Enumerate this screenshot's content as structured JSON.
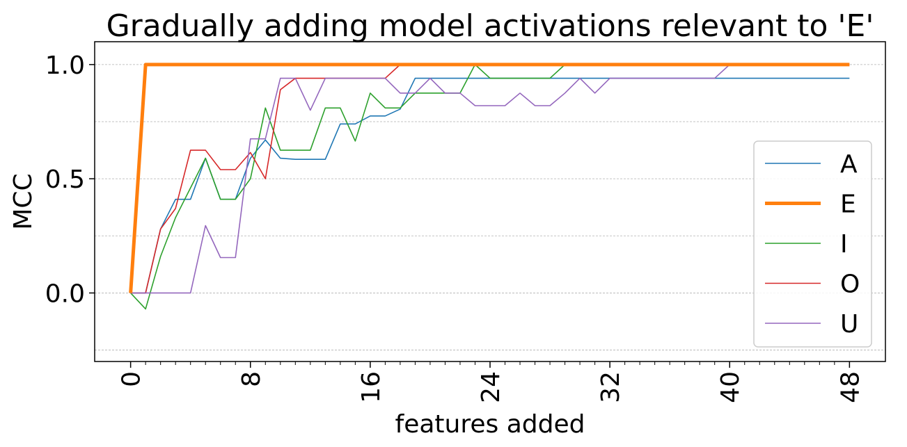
{
  "chart_data": {
    "type": "line",
    "title": "Gradually adding model activations relevant to 'E'",
    "xlabel": "features added",
    "ylabel": "MCC",
    "xlim": [
      -2.4,
      50.4
    ],
    "ylim": [
      -0.3,
      1.1
    ],
    "x_ticks": [
      0,
      8,
      16,
      24,
      32,
      40,
      48
    ],
    "x_tick_labels": [
      "0",
      "8",
      "16",
      "24",
      "32",
      "40",
      "48"
    ],
    "y_ticks": [
      0.0,
      0.5,
      1.0
    ],
    "y_tick_labels": [
      "0.0",
      "0.5",
      "1.0"
    ],
    "y_gridlines": [
      -0.25,
      0.0,
      0.25,
      0.5,
      0.75,
      1.0
    ],
    "grid": "horizontal dashed",
    "legend_position": "right",
    "x": [
      0,
      1,
      2,
      3,
      4,
      5,
      6,
      7,
      8,
      9,
      10,
      11,
      12,
      13,
      14,
      15,
      16,
      17,
      18,
      19,
      20,
      21,
      22,
      23,
      24,
      25,
      26,
      27,
      28,
      29,
      30,
      31,
      32,
      33,
      34,
      35,
      36,
      37,
      38,
      39,
      40,
      41,
      42,
      43,
      44,
      45,
      46,
      47,
      48
    ],
    "series": [
      {
        "name": "A",
        "color": "#1f77b4",
        "width": 1.6,
        "values": [
          0,
          0,
          0.28,
          0.41,
          0.41,
          0.59,
          0.41,
          0.41,
          0.59,
          0.67,
          0.59,
          0.585,
          0.585,
          0.585,
          0.74,
          0.74,
          0.775,
          0.775,
          0.805,
          0.94,
          0.94,
          0.94,
          0.94,
          0.94,
          0.94,
          0.94,
          0.94,
          0.94,
          0.94,
          0.94,
          0.94,
          0.94,
          0.94,
          0.94,
          0.94,
          0.94,
          0.94,
          0.94,
          0.94,
          0.94,
          0.94,
          0.94,
          0.94,
          0.94,
          0.94,
          0.94,
          0.94,
          0.94,
          0.94
        ]
      },
      {
        "name": "E",
        "color": "#ff7f0e",
        "width": 5,
        "values": [
          0,
          1,
          1,
          1,
          1,
          1,
          1,
          1,
          1,
          1,
          1,
          1,
          1,
          1,
          1,
          1,
          1,
          1,
          1,
          1,
          1,
          1,
          1,
          1,
          1,
          1,
          1,
          1,
          1,
          1,
          1,
          1,
          1,
          1,
          1,
          1,
          1,
          1,
          1,
          1,
          1,
          1,
          1,
          1,
          1,
          1,
          1,
          1,
          1
        ]
      },
      {
        "name": "I",
        "color": "#2ca02c",
        "width": 1.6,
        "values": [
          0,
          -0.07,
          0.16,
          0.33,
          0.46,
          0.59,
          0.41,
          0.41,
          0.5,
          0.81,
          0.625,
          0.625,
          0.625,
          0.81,
          0.81,
          0.665,
          0.875,
          0.81,
          0.81,
          0.875,
          0.875,
          0.875,
          0.875,
          1.0,
          0.94,
          0.94,
          0.94,
          0.94,
          0.94,
          1.0,
          1.0,
          1.0,
          1.0,
          1.0,
          1.0,
          1.0,
          1.0,
          1.0,
          1.0,
          1.0,
          1.0,
          1.0,
          1.0,
          1.0,
          1.0,
          1.0,
          1.0,
          1.0,
          1.0
        ]
      },
      {
        "name": "O",
        "color": "#d62728",
        "width": 1.6,
        "values": [
          0,
          0,
          0.28,
          0.37,
          0.625,
          0.625,
          0.54,
          0.54,
          0.615,
          0.5,
          0.89,
          0.94,
          0.94,
          0.94,
          0.94,
          0.94,
          0.94,
          0.94,
          1.0,
          1.0,
          1.0,
          1.0,
          1.0,
          1.0,
          1.0,
          1.0,
          1.0,
          1.0,
          1.0,
          1.0,
          1.0,
          1.0,
          1.0,
          1.0,
          1.0,
          1.0,
          1.0,
          1.0,
          1.0,
          1.0,
          1.0,
          1.0,
          1.0,
          1.0,
          1.0,
          1.0,
          1.0,
          1.0,
          1.0
        ]
      },
      {
        "name": "U",
        "color": "#9467bd",
        "width": 1.6,
        "values": [
          0,
          0,
          0,
          0,
          0,
          0.295,
          0.155,
          0.155,
          0.675,
          0.675,
          0.94,
          0.94,
          0.8,
          0.94,
          0.94,
          0.94,
          0.94,
          0.94,
          0.875,
          0.875,
          0.94,
          0.875,
          0.875,
          0.82,
          0.82,
          0.82,
          0.875,
          0.82,
          0.82,
          0.875,
          0.94,
          0.875,
          0.94,
          0.94,
          0.94,
          0.94,
          0.94,
          0.94,
          0.94,
          0.94,
          1.0,
          1.0,
          1.0,
          1.0,
          1.0,
          1.0,
          1.0,
          1.0,
          1.0
        ]
      }
    ]
  }
}
